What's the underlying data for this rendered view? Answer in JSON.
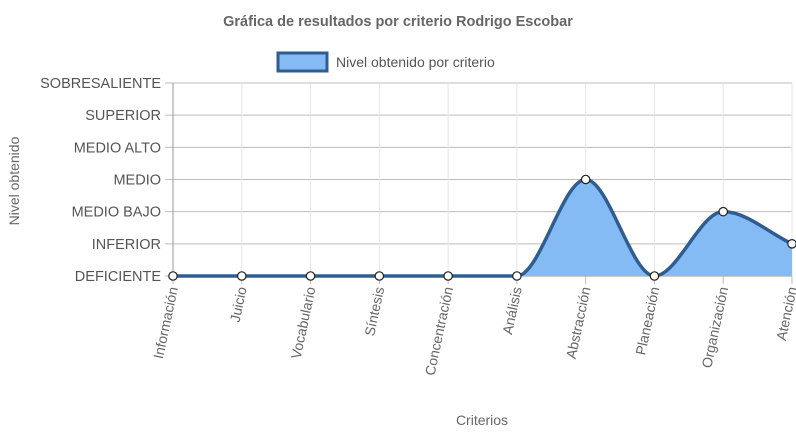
{
  "chart_data": {
    "type": "line",
    "title": "Gráfica de resultados por criterio Rodrigo Escobar",
    "xlabel": "Criterios",
    "ylabel": "Nivel obtenido",
    "categories": [
      "Información",
      "Juicio",
      "Vocabulario",
      "Síntesis",
      "Concentración",
      "Análisis",
      "Abstracción",
      "Planeación",
      "Organización",
      "Atención"
    ],
    "y_levels": [
      "DEFICIENTE",
      "INFERIOR",
      "MEDIO BAJO",
      "MEDIO",
      "MEDIO ALTO",
      "SUPERIOR",
      "SOBRESALIENTE"
    ],
    "ylim": [
      0,
      6
    ],
    "series": [
      {
        "name": "Nivel obtenido por criterio",
        "values": [
          0,
          0,
          0,
          0,
          0,
          0,
          3,
          0,
          2,
          1
        ],
        "fill": true,
        "line_color": "#2f5d91",
        "fill_color": "#85bbf5"
      }
    ],
    "legend_position": "top",
    "grid": true
  }
}
